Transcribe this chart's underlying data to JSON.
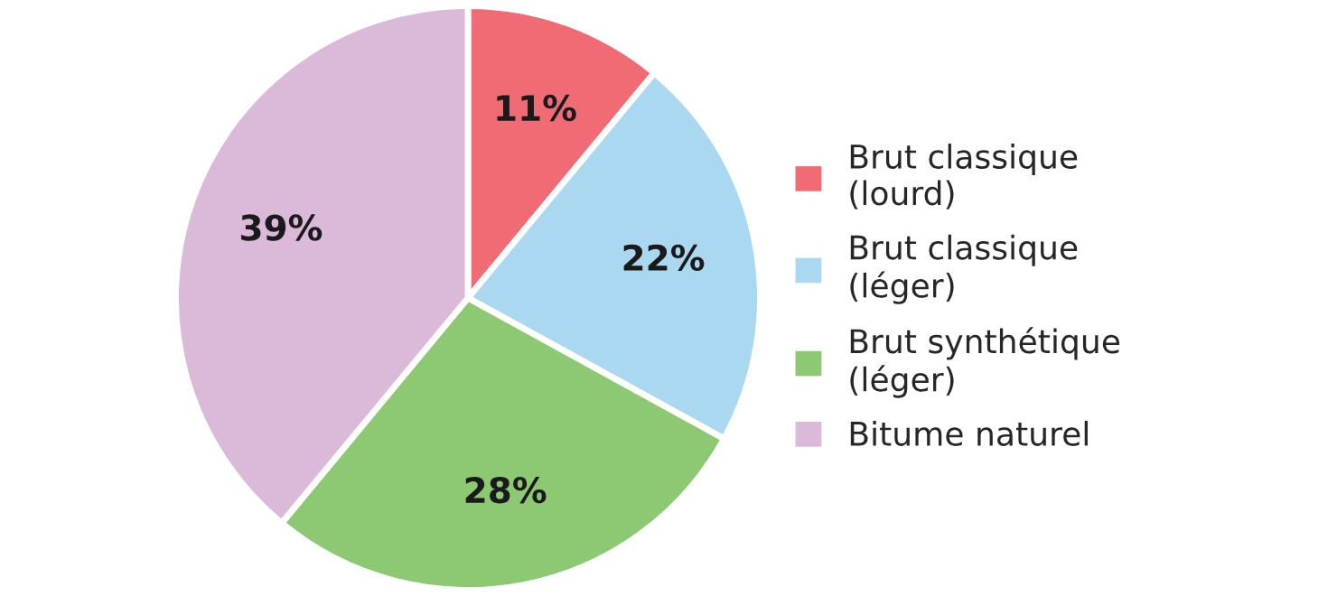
{
  "chart_data": {
    "type": "pie",
    "categories": [
      "Brut classique (lourd)",
      "Brut classique (léger)",
      "Brut synthétique (léger)",
      "Bitume naturel"
    ],
    "values": [
      11,
      22,
      28,
      39
    ],
    "colors": [
      "#f06b74",
      "#a9d8f0",
      "#8dc872",
      "#dbb9d9"
    ],
    "value_labels": [
      "11%",
      "22%",
      "28%",
      "39%"
    ],
    "legend": "right"
  }
}
